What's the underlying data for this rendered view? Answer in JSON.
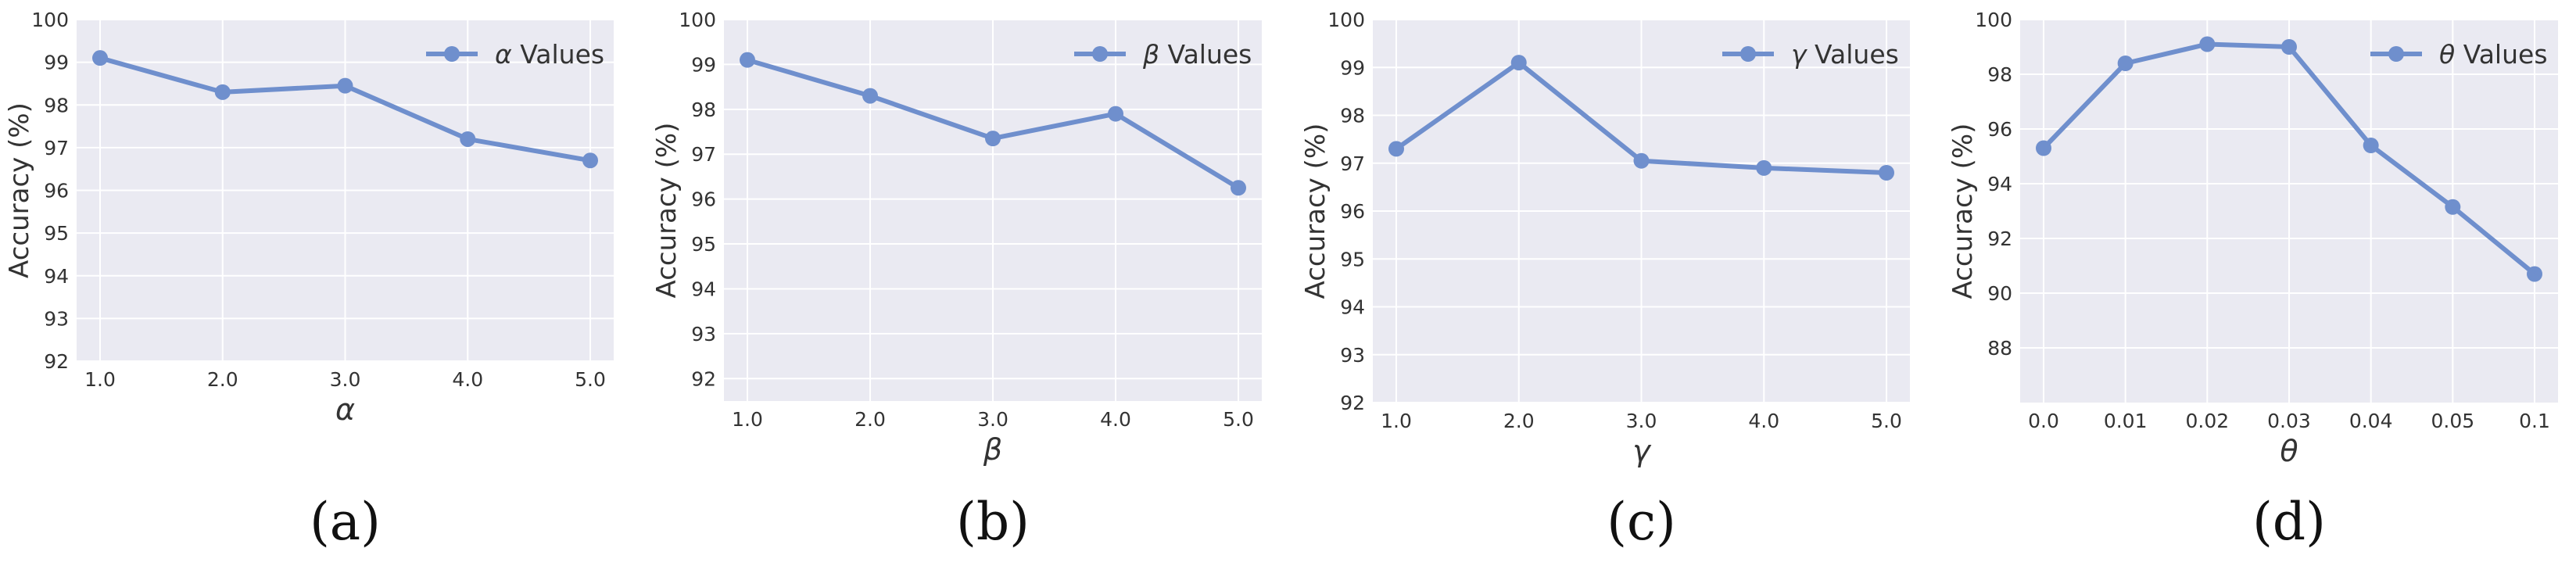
{
  "colors": {
    "line": "#6f8fcd",
    "plot_bg": "#eaeaf2",
    "grid": "#ffffff",
    "text": "#333333"
  },
  "chart_data": [
    {
      "type": "line",
      "panel_label": "(a)",
      "categories": [
        "1.0",
        "2.0",
        "3.0",
        "4.0",
        "5.0"
      ],
      "series": [
        {
          "name": "α Values",
          "legend_symbol": "α",
          "legend_suffix": " Values",
          "values": [
            99.1,
            98.3,
            98.45,
            97.2,
            96.7
          ]
        }
      ],
      "xlabel": "α",
      "ylabel": "Accuracy (%)",
      "yticks": [
        92,
        93,
        94,
        95,
        96,
        97,
        98,
        99,
        100
      ],
      "ylim": [
        92,
        100
      ],
      "grid": true,
      "legend": "top-right"
    },
    {
      "type": "line",
      "panel_label": "(b)",
      "categories": [
        "1.0",
        "2.0",
        "3.0",
        "4.0",
        "5.0"
      ],
      "series": [
        {
          "name": "β Values",
          "legend_symbol": "β",
          "legend_suffix": " Values",
          "values": [
            99.1,
            98.3,
            97.35,
            97.9,
            96.25
          ]
        }
      ],
      "xlabel": "β",
      "ylabel": "Accuracy (%)",
      "yticks": [
        92,
        93,
        94,
        95,
        96,
        97,
        98,
        99,
        100
      ],
      "ylim": [
        91.5,
        100
      ],
      "grid": true,
      "legend": "top-right"
    },
    {
      "type": "line",
      "panel_label": "(c)",
      "categories": [
        "1.0",
        "2.0",
        "3.0",
        "4.0",
        "5.0"
      ],
      "series": [
        {
          "name": "γ Values",
          "legend_symbol": "γ",
          "legend_suffix": " Values",
          "values": [
            97.3,
            99.1,
            97.05,
            96.9,
            96.8
          ]
        }
      ],
      "xlabel": "γ",
      "ylabel": "Accuracy (%)",
      "yticks": [
        92,
        93,
        94,
        95,
        96,
        97,
        98,
        99,
        100
      ],
      "ylim": [
        92,
        100
      ],
      "grid": true,
      "legend": "top-right"
    },
    {
      "type": "line",
      "panel_label": "(d)",
      "categories": [
        "0.0",
        "0.01",
        "0.02",
        "0.03",
        "0.04",
        "0.05",
        "0.1"
      ],
      "series": [
        {
          "name": "θ Values",
          "legend_symbol": "θ",
          "legend_suffix": " Values",
          "values": [
            95.3,
            98.4,
            99.1,
            99.0,
            95.4,
            93.15,
            90.7
          ]
        }
      ],
      "xlabel": "θ",
      "ylabel": "Accuracy (%)",
      "yticks": [
        88,
        90,
        92,
        94,
        96,
        98,
        100
      ],
      "ylim": [
        86,
        100
      ],
      "grid": true,
      "legend": "top-right"
    }
  ]
}
